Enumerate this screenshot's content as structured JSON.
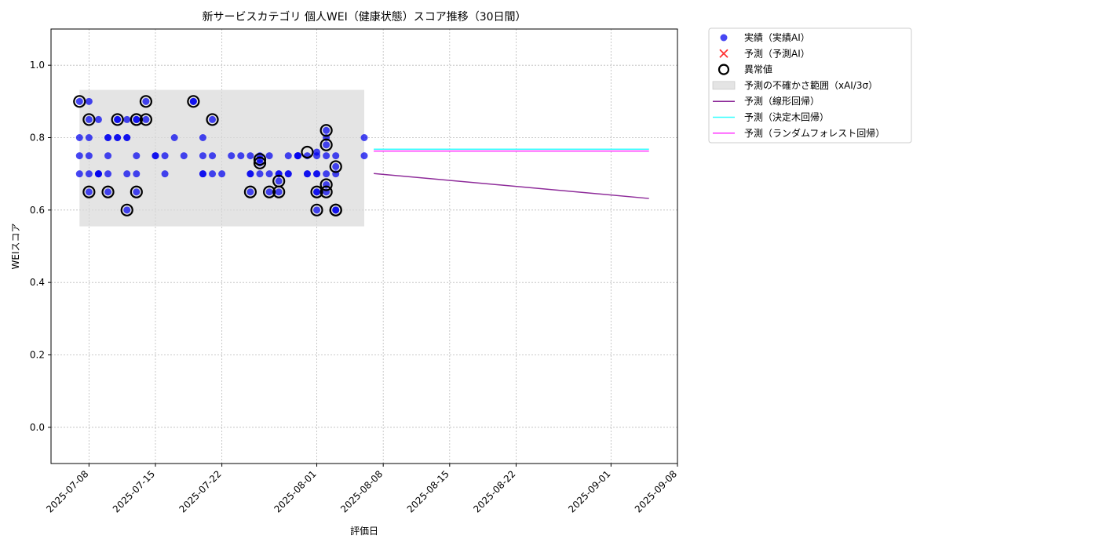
{
  "chart_data": {
    "type": "scatter",
    "title": "新サービスカテゴリ 個人WEI（健康状態）スコア推移（30日間）",
    "xlabel": "評価日",
    "ylabel": "WEIスコア",
    "x_range": [
      "2025-07-04",
      "2025-09-08"
    ],
    "ylim": [
      -0.1,
      1.1
    ],
    "yticks": [
      0.0,
      0.2,
      0.4,
      0.6,
      0.8,
      1.0
    ],
    "ytick_labels": [
      "0.0",
      "0.2",
      "0.4",
      "0.6",
      "0.8",
      "1.0"
    ],
    "xticks": [
      "2025-07-08",
      "2025-07-15",
      "2025-07-22",
      "2025-08-01",
      "2025-08-08",
      "2025-08-15",
      "2025-08-22",
      "2025-09-01",
      "2025-09-08"
    ],
    "grid": true,
    "legend_position": "outside-top-right",
    "colors": {
      "actual": "#0000ee",
      "predicted": "#ff3333",
      "anomaly": "#000000",
      "band": "#d9d9d9",
      "linear": "#8e2c9a",
      "tree": "#33ffff",
      "forest": "#ff33ff"
    },
    "legend": [
      {
        "key": "actual",
        "label": "実績（実績AI）"
      },
      {
        "key": "predicted",
        "label": "予測（予測AI）"
      },
      {
        "key": "anomaly",
        "label": "異常値"
      },
      {
        "key": "band",
        "label": "予測の不確かさ範囲（xAI/3σ）"
      },
      {
        "key": "linear",
        "label": "予測（線形回帰）"
      },
      {
        "key": "tree",
        "label": "予測（決定木回帰）"
      },
      {
        "key": "forest",
        "label": "予測（ランダムフォレスト回帰）"
      }
    ],
    "band": {
      "x_start": "2025-07-07",
      "x_end": "2025-08-06",
      "y_low": 0.555,
      "y_high": 0.932
    },
    "actual": [
      [
        "2025-07-07",
        0.75
      ],
      [
        "2025-07-07",
        0.7
      ],
      [
        "2025-07-07",
        0.8
      ],
      [
        "2025-07-07",
        0.9
      ],
      [
        "2025-07-08",
        0.9
      ],
      [
        "2025-07-08",
        0.8
      ],
      [
        "2025-07-08",
        0.75
      ],
      [
        "2025-07-08",
        0.65
      ],
      [
        "2025-07-08",
        0.7
      ],
      [
        "2025-07-08",
        0.85
      ],
      [
        "2025-07-09",
        0.85
      ],
      [
        "2025-07-09",
        0.7
      ],
      [
        "2025-07-09",
        0.7
      ],
      [
        "2025-07-09",
        0.7
      ],
      [
        "2025-07-10",
        0.8
      ],
      [
        "2025-07-10",
        0.75
      ],
      [
        "2025-07-10",
        0.7
      ],
      [
        "2025-07-10",
        0.65
      ],
      [
        "2025-07-10",
        0.8
      ],
      [
        "2025-07-11",
        0.8
      ],
      [
        "2025-07-11",
        0.85
      ],
      [
        "2025-07-11",
        0.85
      ],
      [
        "2025-07-11",
        0.8
      ],
      [
        "2025-07-12",
        0.8
      ],
      [
        "2025-07-12",
        0.7
      ],
      [
        "2025-07-12",
        0.6
      ],
      [
        "2025-07-12",
        0.8
      ],
      [
        "2025-07-12",
        0.85
      ],
      [
        "2025-07-13",
        0.75
      ],
      [
        "2025-07-13",
        0.7
      ],
      [
        "2025-07-13",
        0.65
      ],
      [
        "2025-07-13",
        0.85
      ],
      [
        "2025-07-13",
        0.85
      ],
      [
        "2025-07-14",
        0.9
      ],
      [
        "2025-07-14",
        0.85
      ],
      [
        "2025-07-15",
        0.75
      ],
      [
        "2025-07-15",
        0.75
      ],
      [
        "2025-07-16",
        0.7
      ],
      [
        "2025-07-16",
        0.75
      ],
      [
        "2025-07-17",
        0.8
      ],
      [
        "2025-07-18",
        0.75
      ],
      [
        "2025-07-19",
        0.9
      ],
      [
        "2025-07-19",
        0.9
      ],
      [
        "2025-07-20",
        0.75
      ],
      [
        "2025-07-20",
        0.7
      ],
      [
        "2025-07-20",
        0.8
      ],
      [
        "2025-07-20",
        0.7
      ],
      [
        "2025-07-21",
        0.85
      ],
      [
        "2025-07-21",
        0.75
      ],
      [
        "2025-07-21",
        0.7
      ],
      [
        "2025-07-22",
        0.7
      ],
      [
        "2025-07-23",
        0.75
      ],
      [
        "2025-07-24",
        0.75
      ],
      [
        "2025-07-25",
        0.75
      ],
      [
        "2025-07-25",
        0.7
      ],
      [
        "2025-07-25",
        0.65
      ],
      [
        "2025-07-25",
        0.7
      ],
      [
        "2025-07-26",
        0.74
      ],
      [
        "2025-07-26",
        0.73
      ],
      [
        "2025-07-26",
        0.7
      ],
      [
        "2025-07-26",
        0.75
      ],
      [
        "2025-07-27",
        0.65
      ],
      [
        "2025-07-27",
        0.7
      ],
      [
        "2025-07-27",
        0.75
      ],
      [
        "2025-07-28",
        0.7
      ],
      [
        "2025-07-28",
        0.68
      ],
      [
        "2025-07-28",
        0.65
      ],
      [
        "2025-07-28",
        0.7
      ],
      [
        "2025-07-29",
        0.75
      ],
      [
        "2025-07-29",
        0.7
      ],
      [
        "2025-07-29",
        0.7
      ],
      [
        "2025-07-30",
        0.75
      ],
      [
        "2025-07-30",
        0.75
      ],
      [
        "2025-07-30",
        0.75
      ],
      [
        "2025-07-31",
        0.7
      ],
      [
        "2025-07-31",
        0.7
      ],
      [
        "2025-07-31",
        0.75
      ],
      [
        "2025-08-01",
        0.76
      ],
      [
        "2025-08-01",
        0.7
      ],
      [
        "2025-08-01",
        0.75
      ],
      [
        "2025-08-01",
        0.7
      ],
      [
        "2025-08-01",
        0.65
      ],
      [
        "2025-08-01",
        0.65
      ],
      [
        "2025-08-01",
        0.6
      ],
      [
        "2025-08-02",
        0.67
      ],
      [
        "2025-08-02",
        0.65
      ],
      [
        "2025-08-02",
        0.78
      ],
      [
        "2025-08-02",
        0.82
      ],
      [
        "2025-08-02",
        0.8
      ],
      [
        "2025-08-02",
        0.75
      ],
      [
        "2025-08-02",
        0.7
      ],
      [
        "2025-08-03",
        0.6
      ],
      [
        "2025-08-03",
        0.6
      ],
      [
        "2025-08-03",
        0.7
      ],
      [
        "2025-08-03",
        0.75
      ],
      [
        "2025-08-03",
        0.72
      ],
      [
        "2025-08-06",
        0.8
      ],
      [
        "2025-08-06",
        0.75
      ]
    ],
    "anomalies": [
      [
        "2025-07-07",
        0.9
      ],
      [
        "2025-07-08",
        0.65
      ],
      [
        "2025-07-08",
        0.85
      ],
      [
        "2025-07-10",
        0.65
      ],
      [
        "2025-07-11",
        0.85
      ],
      [
        "2025-07-12",
        0.6
      ],
      [
        "2025-07-13",
        0.85
      ],
      [
        "2025-07-13",
        0.65
      ],
      [
        "2025-07-13",
        0.85
      ],
      [
        "2025-07-14",
        0.9
      ],
      [
        "2025-07-14",
        0.85
      ],
      [
        "2025-07-19",
        0.9
      ],
      [
        "2025-07-21",
        0.85
      ],
      [
        "2025-07-25",
        0.65
      ],
      [
        "2025-07-26",
        0.74
      ],
      [
        "2025-07-26",
        0.73
      ],
      [
        "2025-07-27",
        0.65
      ],
      [
        "2025-07-28",
        0.68
      ],
      [
        "2025-07-28",
        0.65
      ],
      [
        "2025-07-31",
        0.76
      ],
      [
        "2025-08-01",
        0.65
      ],
      [
        "2025-08-01",
        0.6
      ],
      [
        "2025-08-02",
        0.67
      ],
      [
        "2025-08-02",
        0.65
      ],
      [
        "2025-08-02",
        0.78
      ],
      [
        "2025-08-02",
        0.82
      ],
      [
        "2025-08-03",
        0.6
      ],
      [
        "2025-08-03",
        0.6
      ],
      [
        "2025-08-03",
        0.72
      ]
    ],
    "series": [
      {
        "key": "linear",
        "x": [
          "2025-08-07",
          "2025-09-05"
        ],
        "y": [
          0.701,
          0.632
        ]
      },
      {
        "key": "tree",
        "x": [
          "2025-08-07",
          "2025-09-05"
        ],
        "y": [
          0.768,
          0.768
        ]
      },
      {
        "key": "forest",
        "x": [
          "2025-08-07",
          "2025-09-05"
        ],
        "y": [
          0.763,
          0.763
        ]
      }
    ]
  }
}
